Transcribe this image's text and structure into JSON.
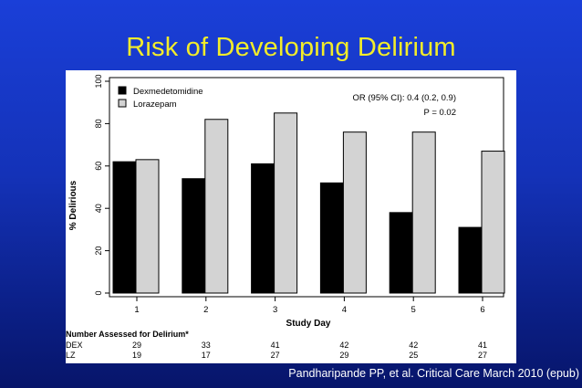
{
  "slide": {
    "title": "Risk of Developing Delirium",
    "citation": "Pandharipande PP, et al. Critical Care March 2010 (epub)"
  },
  "chart_data": {
    "type": "bar",
    "title": "",
    "xlabel": "Study Day",
    "ylabel": "% Delirious",
    "ylim": [
      0,
      100
    ],
    "yticks": [
      0,
      20,
      40,
      60,
      80,
      100
    ],
    "categories": [
      "1",
      "2",
      "3",
      "4",
      "5",
      "6"
    ],
    "series": [
      {
        "name": "Dexmedetomidine",
        "color": "#000000",
        "values": [
          62,
          54,
          61,
          52,
          38,
          31
        ]
      },
      {
        "name": "Lorazepam",
        "color": "#d3d3d3",
        "values": [
          63,
          82,
          85,
          76,
          76,
          67
        ]
      }
    ],
    "legend_position": "top-left",
    "annotation": {
      "line1": "OR (95% CI): 0.4 (0.2, 0.9)",
      "line2": "P = 0.02"
    },
    "assessed_table": {
      "title": "Number Assessed for Delirium*",
      "rows": [
        {
          "label": "DEX",
          "values": [
            "29",
            "33",
            "41",
            "42",
            "42",
            "41"
          ]
        },
        {
          "label": "LZ",
          "values": [
            "19",
            "17",
            "27",
            "29",
            "25",
            "27"
          ]
        }
      ]
    }
  }
}
